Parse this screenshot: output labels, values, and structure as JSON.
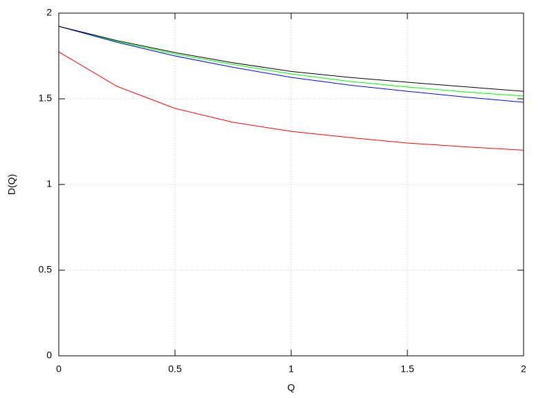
{
  "chart_data": {
    "type": "line",
    "x_label": "Q",
    "y_label": "D(Q)",
    "x": [
      0,
      0.25,
      0.5,
      0.75,
      1,
      1.25,
      1.5,
      1.75,
      2
    ],
    "series": [
      {
        "color": "#ff0000",
        "values": [
          1.774,
          1.573,
          1.444,
          1.363,
          1.31,
          1.274,
          1.242,
          1.22,
          1.2
        ]
      },
      {
        "color": "#00ff00",
        "values": [
          1.923,
          1.835,
          1.762,
          1.7,
          1.645,
          1.602,
          1.569,
          1.54,
          1.516
        ]
      },
      {
        "color": "#0000ff",
        "values": [
          1.923,
          1.83,
          1.75,
          1.684,
          1.625,
          1.58,
          1.544,
          1.51,
          1.48
        ]
      },
      {
        "color": "#000000",
        "values": [
          1.923,
          1.84,
          1.77,
          1.71,
          1.66,
          1.625,
          1.597,
          1.57,
          1.544
        ]
      }
    ],
    "xlim": [
      0,
      2
    ],
    "ylim": [
      0,
      2
    ],
    "xticks": [
      0,
      0.5,
      1,
      1.5,
      2
    ],
    "yticks": [
      0,
      0.5,
      1,
      1.5,
      2
    ],
    "grid": true
  }
}
